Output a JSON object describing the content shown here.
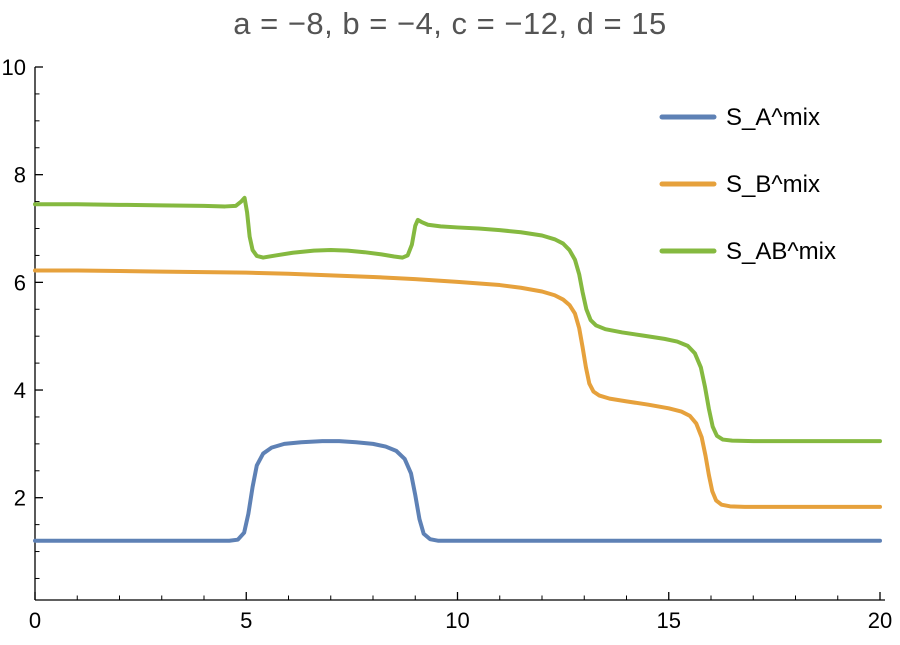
{
  "chart_data": {
    "type": "line",
    "title": "a = −8, b = −4, c = −12, d = 15",
    "xlabel": "",
    "ylabel": "",
    "xlim": [
      0,
      20
    ],
    "ylim": [
      0.1,
      10
    ],
    "xticks": [
      0,
      5,
      10,
      15,
      20
    ],
    "yticks": [
      2,
      4,
      6,
      8,
      10
    ],
    "x_minor_step": 1,
    "y_minor_step": 0.5,
    "grid": false,
    "legend_position": "top-right",
    "series": [
      {
        "name": "S_A^mix",
        "color": "#5e81b5",
        "points": [
          [
            0,
            1.2
          ],
          [
            1,
            1.2
          ],
          [
            2,
            1.2
          ],
          [
            3,
            1.2
          ],
          [
            4,
            1.2
          ],
          [
            4.6,
            1.2
          ],
          [
            4.8,
            1.22
          ],
          [
            4.95,
            1.35
          ],
          [
            5.05,
            1.7
          ],
          [
            5.15,
            2.2
          ],
          [
            5.25,
            2.6
          ],
          [
            5.4,
            2.82
          ],
          [
            5.6,
            2.93
          ],
          [
            5.9,
            3.0
          ],
          [
            6.3,
            3.03
          ],
          [
            6.8,
            3.05
          ],
          [
            7.2,
            3.05
          ],
          [
            7.6,
            3.03
          ],
          [
            8.0,
            3.0
          ],
          [
            8.3,
            2.95
          ],
          [
            8.55,
            2.87
          ],
          [
            8.75,
            2.72
          ],
          [
            8.9,
            2.45
          ],
          [
            9.0,
            2.05
          ],
          [
            9.1,
            1.6
          ],
          [
            9.2,
            1.33
          ],
          [
            9.35,
            1.23
          ],
          [
            9.55,
            1.2
          ],
          [
            10,
            1.2
          ],
          [
            12,
            1.2
          ],
          [
            14,
            1.2
          ],
          [
            16,
            1.2
          ],
          [
            18,
            1.2
          ],
          [
            20,
            1.2
          ]
        ]
      },
      {
        "name": "S_B^mix",
        "color": "#e6a13c",
        "points": [
          [
            0,
            6.22
          ],
          [
            1,
            6.22
          ],
          [
            2,
            6.21
          ],
          [
            3,
            6.2
          ],
          [
            4,
            6.19
          ],
          [
            5,
            6.18
          ],
          [
            6,
            6.16
          ],
          [
            7,
            6.13
          ],
          [
            8,
            6.1
          ],
          [
            9,
            6.06
          ],
          [
            10,
            6.01
          ],
          [
            11,
            5.95
          ],
          [
            11.5,
            5.9
          ],
          [
            12,
            5.83
          ],
          [
            12.3,
            5.76
          ],
          [
            12.5,
            5.68
          ],
          [
            12.65,
            5.58
          ],
          [
            12.78,
            5.42
          ],
          [
            12.88,
            5.15
          ],
          [
            12.96,
            4.8
          ],
          [
            13.04,
            4.42
          ],
          [
            13.12,
            4.12
          ],
          [
            13.22,
            3.97
          ],
          [
            13.35,
            3.9
          ],
          [
            13.6,
            3.84
          ],
          [
            14,
            3.79
          ],
          [
            14.5,
            3.73
          ],
          [
            15,
            3.66
          ],
          [
            15.3,
            3.6
          ],
          [
            15.5,
            3.52
          ],
          [
            15.65,
            3.38
          ],
          [
            15.78,
            3.12
          ],
          [
            15.87,
            2.78
          ],
          [
            15.95,
            2.42
          ],
          [
            16.03,
            2.12
          ],
          [
            16.12,
            1.95
          ],
          [
            16.25,
            1.87
          ],
          [
            16.45,
            1.84
          ],
          [
            16.8,
            1.83
          ],
          [
            17.5,
            1.83
          ],
          [
            18.5,
            1.83
          ],
          [
            20,
            1.83
          ]
        ]
      },
      {
        "name": "S_AB^mix",
        "color": "#85b940",
        "points": [
          [
            0,
            7.45
          ],
          [
            1,
            7.45
          ],
          [
            2,
            7.44
          ],
          [
            3,
            7.43
          ],
          [
            4,
            7.42
          ],
          [
            4.5,
            7.41
          ],
          [
            4.75,
            7.42
          ],
          [
            4.88,
            7.5
          ],
          [
            4.96,
            7.57
          ],
          [
            5.02,
            7.3
          ],
          [
            5.08,
            6.85
          ],
          [
            5.15,
            6.6
          ],
          [
            5.25,
            6.49
          ],
          [
            5.4,
            6.46
          ],
          [
            5.7,
            6.5
          ],
          [
            6.1,
            6.55
          ],
          [
            6.6,
            6.59
          ],
          [
            7.0,
            6.6
          ],
          [
            7.4,
            6.59
          ],
          [
            7.8,
            6.56
          ],
          [
            8.2,
            6.52
          ],
          [
            8.5,
            6.48
          ],
          [
            8.7,
            6.46
          ],
          [
            8.82,
            6.5
          ],
          [
            8.92,
            6.7
          ],
          [
            9.0,
            7.05
          ],
          [
            9.06,
            7.16
          ],
          [
            9.15,
            7.12
          ],
          [
            9.3,
            7.07
          ],
          [
            9.6,
            7.04
          ],
          [
            10,
            7.02
          ],
          [
            10.5,
            7.0
          ],
          [
            11,
            6.97
          ],
          [
            11.5,
            6.93
          ],
          [
            12,
            6.87
          ],
          [
            12.3,
            6.8
          ],
          [
            12.5,
            6.72
          ],
          [
            12.65,
            6.6
          ],
          [
            12.78,
            6.42
          ],
          [
            12.88,
            6.15
          ],
          [
            12.96,
            5.82
          ],
          [
            13.05,
            5.5
          ],
          [
            13.15,
            5.3
          ],
          [
            13.28,
            5.2
          ],
          [
            13.5,
            5.13
          ],
          [
            13.9,
            5.07
          ],
          [
            14.4,
            5.01
          ],
          [
            14.9,
            4.95
          ],
          [
            15.2,
            4.9
          ],
          [
            15.45,
            4.82
          ],
          [
            15.62,
            4.68
          ],
          [
            15.76,
            4.42
          ],
          [
            15.86,
            4.05
          ],
          [
            15.95,
            3.65
          ],
          [
            16.04,
            3.32
          ],
          [
            16.14,
            3.15
          ],
          [
            16.28,
            3.08
          ],
          [
            16.5,
            3.06
          ],
          [
            17,
            3.05
          ],
          [
            18,
            3.05
          ],
          [
            19,
            3.05
          ],
          [
            20,
            3.05
          ]
        ]
      }
    ]
  },
  "colors": {
    "title": "#545454",
    "axis": "#000000",
    "tick_label": "#000000",
    "legend_label": "#000000"
  }
}
